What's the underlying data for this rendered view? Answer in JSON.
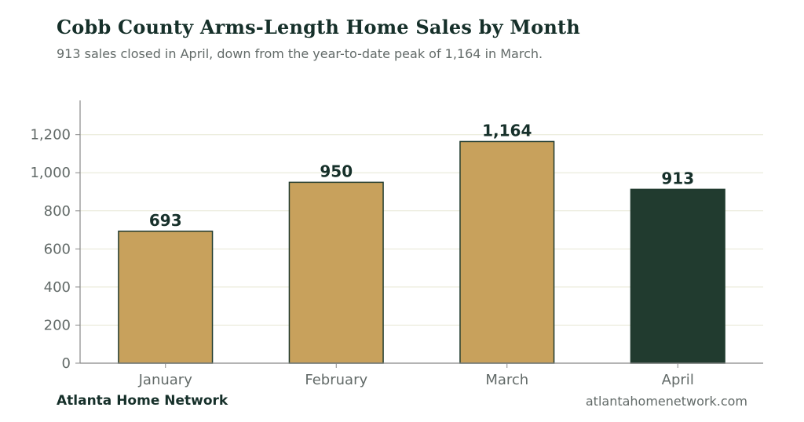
{
  "chart_data": {
    "type": "bar",
    "title": "Cobb County Arms-Length Home Sales by Month",
    "subtitle": "913 sales closed in April, down from the year-to-date peak of 1,164 in March.",
    "categories": [
      "January",
      "February",
      "March",
      "April"
    ],
    "values": [
      693,
      950,
      1164,
      913
    ],
    "value_labels": [
      "693",
      "950",
      "1,164",
      "913"
    ],
    "ylim": [
      0,
      1380
    ],
    "yticks": [
      0,
      200,
      400,
      600,
      800,
      1000,
      1200
    ],
    "ytick_labels": [
      "0",
      "200",
      "400",
      "600",
      "800",
      "1,000",
      "1,200"
    ],
    "xlabel": "",
    "ylabel": "",
    "grid": "horizontal",
    "highlight_index": 3,
    "colors": {
      "bar": "#c8a15c",
      "bar_highlight": "#213b2f",
      "bar_outline": "#213b2f",
      "grid": "#e6e7d3",
      "axis": "#888888"
    }
  },
  "footer": {
    "source": "Atlanta Home Network",
    "website": "atlantahomenetwork.com"
  }
}
